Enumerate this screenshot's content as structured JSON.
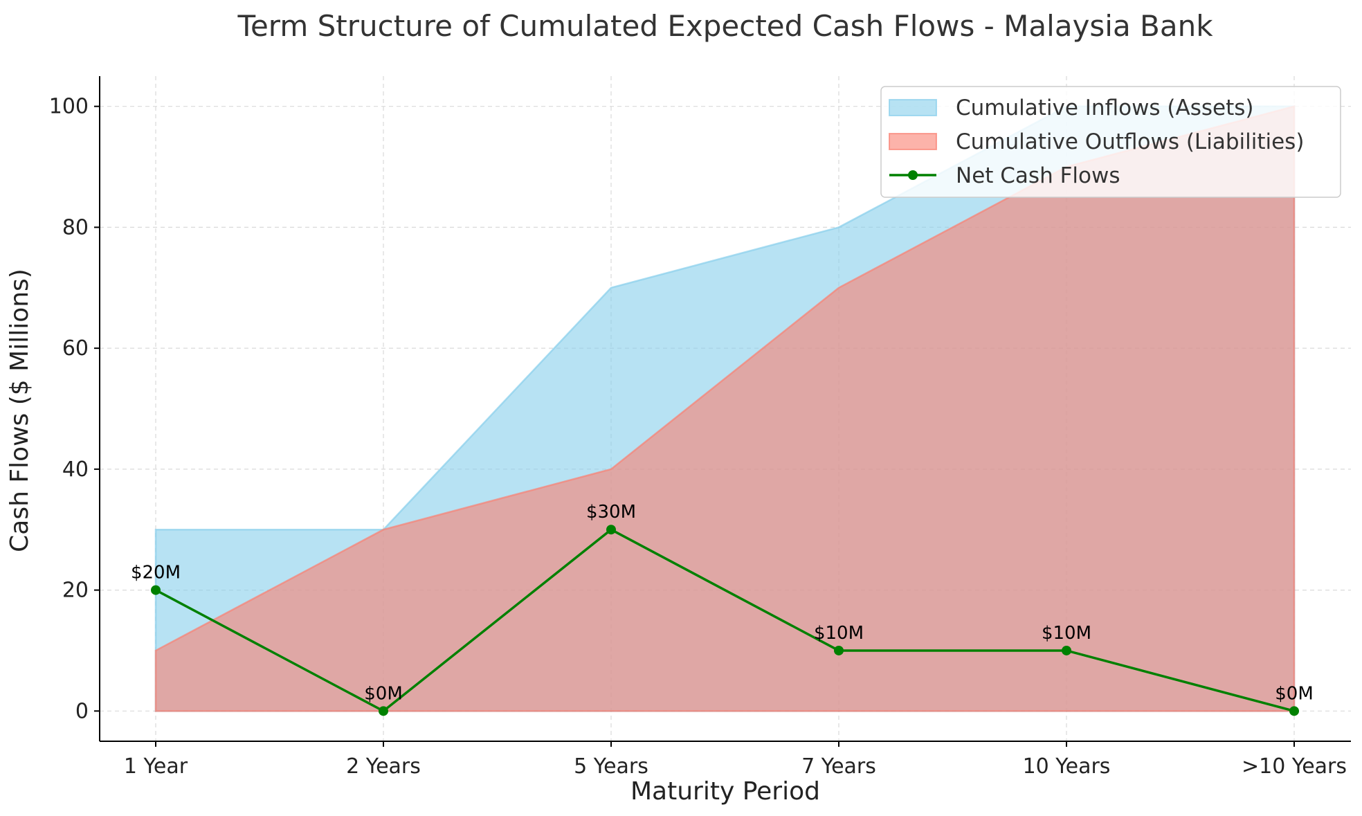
{
  "chart_data": {
    "type": "area",
    "title": "Term Structure of Cumulated Expected Cash Flows - Malaysia Bank",
    "xlabel": "Maturity Period",
    "ylabel": "Cash Flows ($ Millions)",
    "categories": [
      "1 Year",
      "2 Years",
      "5 Years",
      "7 Years",
      "10 Years",
      ">10 Years"
    ],
    "ylim": [
      -5,
      105
    ],
    "yticks": [
      0,
      20,
      40,
      60,
      80,
      100
    ],
    "grid": true,
    "legend_position": "top-right",
    "series": [
      {
        "name": "Cumulative Inflows (Assets)",
        "kind": "area",
        "color": "#87ceeb",
        "values": [
          30,
          30,
          70,
          80,
          100,
          100
        ]
      },
      {
        "name": "Cumulative Outflows (Liabilities)",
        "kind": "area",
        "color": "#fa8072",
        "values": [
          10,
          30,
          40,
          70,
          90,
          100
        ]
      },
      {
        "name": "Net Cash Flows",
        "kind": "line",
        "color": "#008000",
        "values": [
          20,
          0,
          30,
          10,
          10,
          0
        ]
      }
    ],
    "annotations": [
      "$20M",
      "$0M",
      "$30M",
      "$10M",
      "$10M",
      "$0M"
    ]
  }
}
